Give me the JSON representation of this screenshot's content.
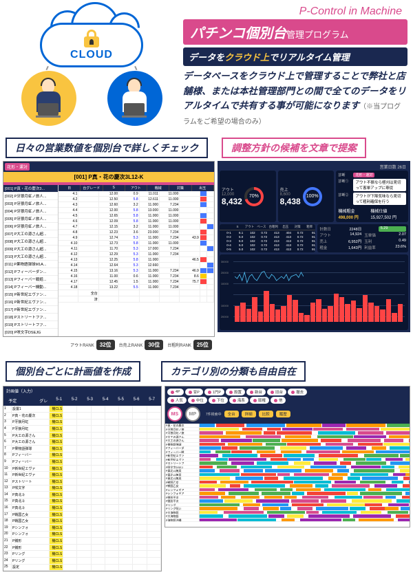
{
  "cloud": {
    "label": "CLOUD",
    "icon": "lock-icon"
  },
  "promo": {
    "subtitle_en": "P-Control in Machine",
    "title_main": "パチンコ個別台",
    "title_sub": "管理プログラム",
    "tagline_pre": "データを",
    "tagline_hl": "クラウド上",
    "tagline_post": "でリアルタイム管理",
    "description": "データベースをクラウド上で管理することで弊社と店舗様、または本社管理部門との間で全てのデータをリアルタイムで共有する事が可能になります",
    "note": "（※当プログラムをご希望の場合のみ）"
  },
  "section1": {
    "left_label": "日々の営業数値を個別台で詳しくチェック",
    "right_label": "調整方針の候補を文章で提案"
  },
  "section2": {
    "left_label": "個別台ごとに計画値を作成",
    "right_label": "カテゴリ別の分類も自由自在"
  },
  "machine_header": "[001]  P真・花の慶次3L12-K",
  "machine_list": [
    "[001] P真・花の慶次3...",
    "[002] P牙狼月虹ノ旅人...",
    "[003] P牙狼月虹ノ旅人...",
    "[004] P牙狼月虹ノ旅人...",
    "[005] P牙狼月虹ノ旅人...",
    "[006] P牙狼月虹ノ旅人...",
    "[007] P大工の源さん超...",
    "[008] P大工の源さん超...",
    "[009] P大工の源さん超...",
    "[010] P大工の源さん超...",
    "[011] P果物語弾球M1A...",
    "[012] Pフィーバーダン...",
    "[013] Pフィーバー戦姫...",
    "[014] Pフィーバー機動...",
    "[015] P新世紀エヴァン...",
    "[016] P新世紀エヴァン...",
    "[017] P新世紀エヴァン...",
    "[018] Pストリートファ...",
    "[019] Pストリートファ...",
    "[020] P咲文字DSEJG"
  ],
  "table_cols": [
    "日",
    "台グレード",
    "S",
    "アウト",
    "機械",
    "対策",
    "出玉"
  ],
  "table_rows": [
    {
      "d": "4.1",
      "g": "",
      "s": "12.00",
      "out": "0.9",
      "m": "11.011",
      "t1": "11.000",
      "t2": "",
      "st": "blue"
    },
    {
      "d": "4.2",
      "g": "",
      "s": "12.50",
      "out": "5.8",
      "m": "12.611",
      "t1": "11.000",
      "t2": "",
      "st": "red"
    },
    {
      "d": "4.3",
      "g": "",
      "s": "12.60",
      "out": "3.2",
      "m": "11.000",
      "t1": "7.234",
      "t2": "",
      "st": "blue"
    },
    {
      "d": "4.4",
      "g": "",
      "s": "12.00",
      "out": "5.8",
      "m": "13.000",
      "t1": "11.000",
      "t2": "",
      "st": ""
    },
    {
      "d": "4.5",
      "g": "",
      "s": "12.65",
      "out": "5.8",
      "m": "11.000",
      "t1": "11.000",
      "t2": "",
      "st": "blue"
    },
    {
      "d": "4.6",
      "g": "",
      "s": "12.09",
      "out": "5.8",
      "m": "11.000",
      "t1": "11.000",
      "t2": "",
      "st": "red"
    },
    {
      "d": "4.7",
      "g": "",
      "s": "12.15",
      "out": "3.2",
      "m": "11.000",
      "t1": "11.000",
      "t2": "",
      "st": ""
    },
    {
      "d": "4.8",
      "g": "",
      "s": "12.23",
      "out": "3.6",
      "m": "23.000",
      "t1": "7.234",
      "t2": "",
      "st": "red"
    },
    {
      "d": "4.9",
      "g": "",
      "s": "12.74",
      "out": "5.3",
      "m": "11.000",
      "t1": "7.234",
      "t2": "43.9",
      "st": "red"
    },
    {
      "d": "4.10",
      "g": "",
      "s": "12.73",
      "out": "5.8",
      "m": "11.000",
      "t1": "11.000",
      "t2": "",
      "st": "blue"
    },
    {
      "d": "4.11",
      "g": "",
      "s": "11.70",
      "out": "5.3",
      "m": "17.000",
      "t1": "7.234",
      "t2": "",
      "st": ""
    },
    {
      "d": "4.12",
      "g": "",
      "s": "12.29",
      "out": "5.3",
      "m": "11.000",
      "t1": "7.234",
      "t2": "",
      "st": ""
    },
    {
      "d": "4.13",
      "g": "",
      "s": "12.25",
      "out": "5.8",
      "m": "11.000",
      "t1": "",
      "t2": "46.5",
      "st": "red"
    },
    {
      "d": "4.14",
      "g": "",
      "s": "12.64",
      "out": "5.3",
      "m": "12.660",
      "t1": "",
      "t2": "",
      "st": ""
    },
    {
      "d": "4.15",
      "g": "",
      "s": "13.16",
      "out": "5.3",
      "m": "11.000",
      "t1": "7.234",
      "t2": "46.9",
      "st": "blue"
    },
    {
      "d": "4.16",
      "g": "",
      "s": "11.00",
      "out": "0.6",
      "m": "11.000",
      "t1": "7.234",
      "t2": "8.6",
      "st": "yellow"
    },
    {
      "d": "4.17",
      "g": "",
      "s": "12.45",
      "out": "1.5",
      "m": "11.000",
      "t1": "7.234",
      "t2": "75.7",
      "st": "red"
    },
    {
      "d": "4.18",
      "g": "",
      "s": "13.22",
      "out": "5.5",
      "m": "11.000",
      "t1": "7.234",
      "t2": "",
      "st": ""
    },
    {
      "d": "",
      "g": "全台",
      "s": "",
      "out": "",
      "m": "",
      "t1": "",
      "t2": "",
      "st": ""
    },
    {
      "d": "",
      "g": "済",
      "s": "",
      "out": "",
      "m": "",
      "t1": "",
      "t2": "",
      "st": ""
    }
  ],
  "dashboard": {
    "days_label": "営業日数 26日",
    "out": {
      "label": "アウト",
      "value": "8,432",
      "sub": "12,000",
      "gauge_pct": "70%"
    },
    "sales": {
      "label": "売上",
      "value": "8,438",
      "sub": "8,600",
      "gauge_pct": "100%"
    },
    "tags": {
      "label1": "診断",
      "header": "花形・運対",
      "msg1_label": "診断①",
      "msg1": "アウト不振なら極刈は見切って客単アップに専従",
      "msg2_label": "診断②",
      "msg2": "アウトが下降気味なら見切って粗利確保を行う"
    },
    "profit": {
      "label": "機械粗金",
      "value": "498,000 円",
      "sub_label": "機械仕値",
      "sub_value": "15,927,502 円"
    },
    "stats": {
      "r1c1_l": "計数日",
      "r1c1_v": "2248日",
      "r1c2_v": "5.29",
      "side_label": "アウト移動曲線",
      "r2c1_l": "アウト",
      "r2c1_v": "14,924",
      "r2c2_l": "玉単価",
      "r2c2_v": "2.07",
      "r3c1_l": "売上",
      "r3c1_v": "6,952円",
      "r3c2_l": "玉利",
      "r3c2_v": "0.49",
      "r4c1_l": "粗金",
      "r4c1_v": "1,643円",
      "r4c2_l": "利益率",
      "r4c2_v": "23.6%"
    },
    "dt_cols": [
      "",
      "S",
      "アウト",
      "ベース",
      "台粗利",
      "出玉",
      "対策",
      "粗率"
    ],
    "dt_rows": [
      [
        "0-1",
        "6.1",
        "102",
        "0.72",
        "413",
        "404",
        "0.72",
        "91"
      ],
      [
        "0-2",
        "5.0",
        "102",
        "0.72",
        "413",
        "413",
        "0.72",
        "91"
      ],
      [
        "0-3",
        "5.0",
        "102",
        "0.72",
        "413",
        "413",
        "0.72",
        "91"
      ],
      [
        "0-4",
        "5.0",
        "102",
        "0.72",
        "413",
        "413",
        "0.72",
        "91"
      ],
      [
        "0-5",
        "5.0",
        "102",
        "0.72",
        "413",
        "413",
        "0.72",
        "91"
      ]
    ],
    "chart_y": [
      "30000",
      "20000",
      "10000",
      "",
      "10000",
      "20000"
    ],
    "chart_bars": [
      18,
      22,
      15,
      28,
      12,
      35,
      20,
      14,
      18,
      30,
      25,
      10,
      8,
      22,
      26,
      15,
      18,
      32,
      28,
      20,
      24,
      16,
      30,
      22,
      18,
      14,
      26,
      10,
      20
    ],
    "chart_line": [
      0.6,
      0.5,
      0.7,
      0.4,
      0.8,
      0.3,
      0.6,
      0.7,
      0.5,
      0.4,
      0.6,
      0.8,
      0.85,
      0.6,
      0.5,
      0.7,
      0.6,
      0.4,
      0.5,
      0.6,
      0.5,
      0.7,
      0.4,
      0.6,
      0.65,
      0.7,
      0.55,
      0.8,
      0.6
    ],
    "chart_x_dates": [
      "4",
      "5",
      "6",
      "7",
      "8",
      "9",
      "10",
      "11",
      "12",
      "13",
      "14",
      "15",
      "16",
      "17",
      "18",
      "19",
      "20",
      "21",
      "22",
      "23",
      "24",
      "25",
      "26",
      "27",
      "28",
      "29",
      "30",
      "1",
      "2"
    ],
    "ranks": [
      {
        "label": "アウトRANK",
        "value": "32位"
      },
      {
        "label": "台売上RANK",
        "value": "30位"
      },
      {
        "label": "台粗利RANK",
        "value": "25位"
      }
    ]
  },
  "plan": {
    "header_cols": [
      "予定",
      "",
      "グレ",
      "5-1",
      "5-2",
      "5-3",
      "5-4",
      "5-5",
      "5-6",
      "5-7"
    ],
    "machines": [
      "設置1",
      "P真・花の慶次",
      "P牙狼月虹",
      "P牙狼月虹",
      "P大工の源さん",
      "P大工の源さん",
      "P果物語弾球",
      "Pフィーバー",
      "Pフィーバー",
      "P新世紀エヴァ",
      "P新世紀エヴァ",
      "Pストリート",
      "P咲文字",
      "P真北斗",
      "P真北斗",
      "P真北斗",
      "P戦国乙女",
      "P戦国乙女",
      "Pシンフォ",
      "Pシンフォ",
      "P銭形",
      "P銭形",
      "Pリング",
      "Pリング",
      "設定"
    ],
    "row_template": [
      "",
      "",
      "機CLS",
      "",
      "",
      "",
      "",
      "",
      "",
      ""
    ]
  },
  "category": {
    "filter_groups": [
      [
        "4P",
        "甘P",
        "1円P",
        "設置",
        "新台",
        "旧台",
        "撤去"
      ],
      [
        "人気",
        "中位",
        "下位",
        "海系",
        "版権",
        "他"
      ]
    ],
    "tabs": [
      "全台",
      "詳細",
      "比較",
      "履歴"
    ],
    "circles": [
      "MS",
      "MP"
    ],
    "sub_label": "7件検索中",
    "gantt_machines": [
      "P真・花の慶次",
      "P牙狼月虹ノ旅",
      "P牙狼月虹ノ旅",
      "P大工の源さん",
      "P大工の源さん",
      "P果物語弾球",
      "Pフィーバーダ",
      "Pフィーバー戦",
      "P新世紀エヴァ",
      "P新世紀エヴァ",
      "Pストリートフ",
      "P咲文字DSEJ",
      "P真北斗無双",
      "P真北斗無双",
      "P真北斗無双",
      "P戦国乙女",
      "P戦国乙女",
      "Pシンフォギア",
      "Pシンフォギア",
      "P銭形平次",
      "P銭形平次",
      "Pリング",
      "Pリング呪い",
      "P大海物語",
      "P大海物語",
      "P海物語沖縄"
    ],
    "gantt_colors": [
      "#d94a8c",
      "#4caf50",
      "#2196f3",
      "#ff9800",
      "#9c27b0",
      "#ffeb3b",
      "#00bcd4",
      "#f44336"
    ]
  }
}
